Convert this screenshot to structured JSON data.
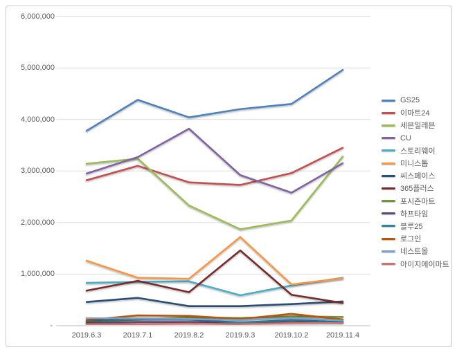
{
  "chart_data": {
    "type": "line",
    "title": "",
    "xlabel": "",
    "ylabel": "",
    "categories": [
      "2019.6.3",
      "2019.7.1",
      "2019.8.2",
      "2019.9.3",
      "2019.10.2",
      "2019.11.4"
    ],
    "series": [
      {
        "name": "GS25",
        "color": "#4F81BD",
        "values": [
          3780000,
          4380000,
          4040000,
          4200000,
          4300000,
          4960000
        ]
      },
      {
        "name": "이마트24",
        "color": "#C0504D",
        "values": [
          2820000,
          3100000,
          2780000,
          2730000,
          2960000,
          3450000
        ]
      },
      {
        "name": "세븐일레븐",
        "color": "#9BBB59",
        "values": [
          3140000,
          3240000,
          2330000,
          1870000,
          2040000,
          3280000
        ]
      },
      {
        "name": "CU",
        "color": "#8064A2",
        "values": [
          2950000,
          3270000,
          3820000,
          2920000,
          2580000,
          3150000
        ]
      },
      {
        "name": "스토리웨이",
        "color": "#4BACC6",
        "values": [
          830000,
          850000,
          860000,
          590000,
          780000,
          930000
        ]
      },
      {
        "name": "미니스톱",
        "color": "#F79646",
        "values": [
          1260000,
          930000,
          910000,
          1720000,
          800000,
          920000
        ]
      },
      {
        "name": "씨스페이스",
        "color": "#2C4D75",
        "values": [
          460000,
          540000,
          380000,
          380000,
          420000,
          470000
        ]
      },
      {
        "name": "365플러스",
        "color": "#772C2A",
        "values": [
          680000,
          870000,
          650000,
          1460000,
          600000,
          440000
        ]
      },
      {
        "name": "포시즌마트",
        "color": "#77933C",
        "values": [
          70000,
          120000,
          160000,
          150000,
          180000,
          170000
        ]
      },
      {
        "name": "하프타임",
        "color": "#604A7B",
        "values": [
          50000,
          70000,
          70000,
          60000,
          80000,
          60000
        ]
      },
      {
        "name": "블루25",
        "color": "#31849B",
        "values": [
          90000,
          130000,
          120000,
          60000,
          110000,
          70000
        ]
      },
      {
        "name": "로그인",
        "color": "#B65708",
        "values": [
          110000,
          200000,
          190000,
          130000,
          230000,
          120000
        ]
      },
      {
        "name": "네스트올",
        "color": "#7BA0CD",
        "values": [
          150000,
          140000,
          130000,
          110000,
          150000,
          100000
        ]
      },
      {
        "name": "아이지에이마트",
        "color": "#CF7370",
        "values": [
          30000,
          30000,
          40000,
          30000,
          50000,
          60000
        ]
      }
    ],
    "y_ticks": [
      {
        "value": 6000000,
        "label": "6,000,000"
      },
      {
        "value": 5000000,
        "label": "5,000,000"
      },
      {
        "value": 4000000,
        "label": "4,000,000"
      },
      {
        "value": 3000000,
        "label": "3,000,000"
      },
      {
        "value": 2000000,
        "label": "2,000,000"
      },
      {
        "value": 1000000,
        "label": "1,000,000"
      },
      {
        "value": 0,
        "label": "-"
      }
    ],
    "ylim": [
      0,
      6000000
    ],
    "grid": true,
    "legend_position": "right",
    "colors": {
      "gridline": "#DDDDDD",
      "axis_line": "#BFBFBF",
      "tick_text": "#595959",
      "frame_border": "#C9C9C9"
    }
  }
}
